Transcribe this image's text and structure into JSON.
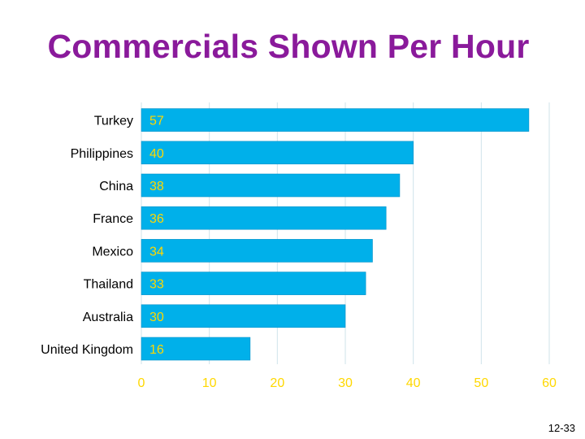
{
  "slide": {
    "title": "Commercials Shown Per Hour",
    "slide_number": "12-33"
  },
  "colors": {
    "title": "#8a1a9b",
    "bar": "#00b0ea",
    "bar_stroke": "#0090c8",
    "value_label": "#ffd800",
    "tick_label": "#ffd800",
    "category_label": "#000000",
    "grid": "#cfe3ea"
  },
  "chart_data": {
    "type": "bar",
    "orientation": "horizontal",
    "categories": [
      "Turkey",
      "Philippines",
      "China",
      "France",
      "Mexico",
      "Thailand",
      "Australia",
      "United Kingdom"
    ],
    "values": [
      57,
      40,
      38,
      36,
      34,
      33,
      30,
      16
    ],
    "title": "Commercials Shown Per Hour",
    "xlabel": "",
    "ylabel": "",
    "xlim": [
      0,
      60
    ],
    "xticks": [
      0,
      10,
      20,
      30,
      40,
      50,
      60
    ],
    "grid": true,
    "legend": "none"
  }
}
